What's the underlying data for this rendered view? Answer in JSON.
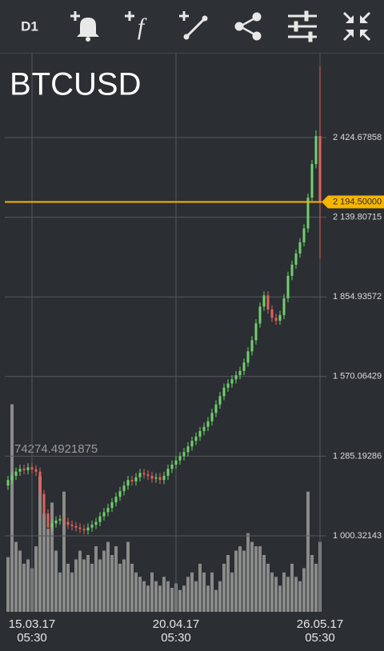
{
  "toolbar": {
    "timeframe": "D1"
  },
  "chart_data": {
    "type": "candlestick",
    "title": "BTCUSD",
    "categories": [
      null,
      null,
      null,
      null,
      null,
      null,
      "15.03.17\n05:30",
      null,
      null,
      null,
      null,
      null,
      null,
      null,
      null,
      null,
      null,
      null,
      null,
      null,
      null,
      null,
      null,
      null,
      null,
      null,
      null,
      null,
      null,
      null,
      null,
      null,
      null,
      null,
      null,
      null,
      null,
      null,
      null,
      null,
      null,
      null,
      "20.04.17\n05:30",
      null,
      null,
      null,
      null,
      null,
      null,
      null,
      null,
      null,
      null,
      null,
      null,
      null,
      null,
      null,
      null,
      null,
      null,
      null,
      null,
      null,
      null,
      null,
      null,
      null,
      null,
      null,
      null,
      null,
      null,
      null,
      null,
      null,
      null,
      null,
      "26.05.17\n05:30"
    ],
    "open": [
      1180,
      1200,
      1215,
      1230,
      1240,
      1235,
      1245,
      1238,
      1230,
      1150,
      1080,
      1030,
      1045,
      1055,
      1060,
      1050,
      1040,
      1035,
      1030,
      1025,
      1020,
      1030,
      1040,
      1050,
      1070,
      1085,
      1100,
      1120,
      1140,
      1160,
      1180,
      1200,
      1195,
      1210,
      1225,
      1220,
      1215,
      1205,
      1210,
      1200,
      1215,
      1240,
      1255,
      1270,
      1285,
      1300,
      1320,
      1340,
      1355,
      1375,
      1390,
      1410,
      1440,
      1470,
      1500,
      1530,
      1545,
      1560,
      1575,
      1590,
      1620,
      1660,
      1700,
      1760,
      1820,
      1860,
      1810,
      1780,
      1770,
      1790,
      1850,
      1930,
      1970,
      2010,
      2050,
      2100,
      2210,
      2330,
      2430
    ],
    "high": [
      1215,
      1230,
      1245,
      1255,
      1255,
      1260,
      1260,
      1253,
      1245,
      1165,
      1095,
      1060,
      1070,
      1075,
      1075,
      1065,
      1055,
      1050,
      1045,
      1040,
      1045,
      1055,
      1065,
      1085,
      1100,
      1115,
      1135,
      1155,
      1175,
      1195,
      1215,
      1215,
      1225,
      1240,
      1240,
      1235,
      1230,
      1225,
      1225,
      1230,
      1255,
      1270,
      1285,
      1300,
      1315,
      1335,
      1355,
      1370,
      1390,
      1405,
      1425,
      1455,
      1485,
      1515,
      1545,
      1560,
      1575,
      1590,
      1605,
      1635,
      1675,
      1715,
      1775,
      1835,
      1875,
      1875,
      1825,
      1795,
      1805,
      1865,
      1945,
      1985,
      2025,
      2065,
      2115,
      2225,
      2345,
      2450,
      2680
    ],
    "low": [
      1165,
      1185,
      1200,
      1215,
      1220,
      1220,
      1223,
      1215,
      1135,
      1065,
      1015,
      1015,
      1030,
      1040,
      1035,
      1025,
      1020,
      1015,
      1010,
      1005,
      1005,
      1015,
      1025,
      1035,
      1055,
      1070,
      1085,
      1105,
      1125,
      1145,
      1165,
      1180,
      1180,
      1195,
      1205,
      1200,
      1190,
      1190,
      1185,
      1185,
      1200,
      1225,
      1240,
      1255,
      1270,
      1285,
      1305,
      1325,
      1340,
      1360,
      1375,
      1395,
      1425,
      1455,
      1485,
      1515,
      1530,
      1545,
      1560,
      1575,
      1605,
      1645,
      1685,
      1745,
      1805,
      1795,
      1765,
      1755,
      1755,
      1775,
      1835,
      1915,
      1955,
      1995,
      2035,
      2085,
      2195,
      2315,
      1990
    ],
    "close": [
      1200,
      1215,
      1230,
      1240,
      1235,
      1245,
      1238,
      1230,
      1150,
      1080,
      1030,
      1045,
      1055,
      1060,
      1050,
      1040,
      1035,
      1030,
      1025,
      1020,
      1030,
      1040,
      1050,
      1070,
      1085,
      1100,
      1120,
      1140,
      1160,
      1180,
      1200,
      1195,
      1210,
      1225,
      1220,
      1215,
      1205,
      1210,
      1200,
      1215,
      1240,
      1255,
      1270,
      1285,
      1300,
      1320,
      1340,
      1355,
      1375,
      1390,
      1410,
      1440,
      1470,
      1500,
      1530,
      1545,
      1560,
      1575,
      1590,
      1620,
      1660,
      1700,
      1760,
      1820,
      1860,
      1810,
      1780,
      1770,
      1790,
      1850,
      1930,
      1970,
      2010,
      2050,
      2100,
      2210,
      2330,
      2430,
      2194.5
    ],
    "volume": [
      25000,
      95000,
      32000,
      28000,
      22000,
      24000,
      20000,
      30000,
      62000,
      45000,
      38000,
      50000,
      28000,
      18000,
      55000,
      22000,
      18000,
      24000,
      28000,
      24000,
      26000,
      22000,
      30000,
      24000,
      28000,
      32000,
      26000,
      30000,
      22000,
      24000,
      32000,
      22000,
      18000,
      16000,
      14000,
      12000,
      18000,
      14000,
      12000,
      16000,
      14000,
      11000,
      13000,
      10000,
      12000,
      16000,
      18000,
      14000,
      22000,
      18000,
      12000,
      18000,
      10000,
      14000,
      22000,
      26000,
      18000,
      28000,
      30000,
      28000,
      36000,
      32000,
      30000,
      30000,
      26000,
      22000,
      18000,
      16000,
      12000,
      18000,
      16000,
      22000,
      16000,
      14000,
      20000,
      55000,
      26000,
      22000,
      32000
    ],
    "ylim": [
      728.6,
      2727.9
    ],
    "yticks": [
      {
        "value": 1000.32143,
        "label": "1 000.32143"
      },
      {
        "value": 1285.19286,
        "label": "1 285.19286"
      },
      {
        "value": 1570.06429,
        "label": "1 570.06429"
      },
      {
        "value": 1854.93572,
        "label": "1 854.93572"
      },
      {
        "value": 2139.80715,
        "label": "2 139.80715"
      },
      {
        "value": 2424.67858,
        "label": "2 424.67858"
      }
    ],
    "vlim": [
      0,
      95900
    ],
    "vticks": [
      74274.4921875
    ],
    "current_price": {
      "value": 2194.5,
      "label": "2 194.50000"
    },
    "up_color": "#6fd16a",
    "down_color": "#e2635d",
    "volume_color": "#8a8a8a",
    "price_line_color": "#f7b500",
    "grid": true
  }
}
